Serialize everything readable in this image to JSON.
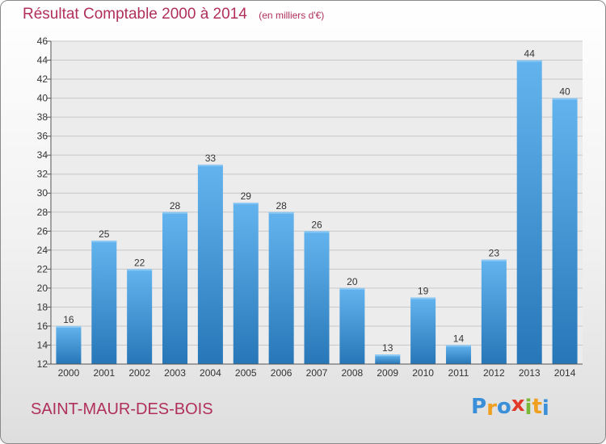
{
  "header": {
    "title": "Résultat Comptable 2000 à 2014",
    "unit": "(en milliers d'€)"
  },
  "footer": {
    "commune": "SAINT-MAUR-DES-BOIS",
    "logo_letters": [
      "P",
      "r",
      "o",
      "x",
      "i",
      "t",
      "i"
    ],
    "logo_colors": [
      "#3a8fd8",
      "#f0a020",
      "#3a8fd8",
      "#e23a2a",
      "#7ab83a",
      "#f0a020",
      "#3a8fd8"
    ]
  },
  "colors": {
    "bar_top": "#63b4ee",
    "bar_bottom": "#2777b8",
    "text": "#b0305a",
    "grid": "#c8c8c8"
  },
  "chart_data": {
    "type": "bar",
    "title": "Résultat Comptable 2000 à 2014",
    "subtitle": "(en milliers d'€)",
    "categories": [
      "2000",
      "2001",
      "2002",
      "2003",
      "2004",
      "2005",
      "2006",
      "2007",
      "2008",
      "2009",
      "2010",
      "2011",
      "2012",
      "2013",
      "2014"
    ],
    "values": [
      16,
      25,
      22,
      28,
      33,
      29,
      28,
      26,
      20,
      13,
      19,
      14,
      23,
      44,
      40
    ],
    "ylim": [
      12,
      46
    ],
    "yticks": [
      12,
      14,
      16,
      18,
      20,
      22,
      24,
      26,
      28,
      30,
      32,
      34,
      36,
      38,
      40,
      42,
      44,
      46
    ],
    "grid": true,
    "data_labels": true
  }
}
